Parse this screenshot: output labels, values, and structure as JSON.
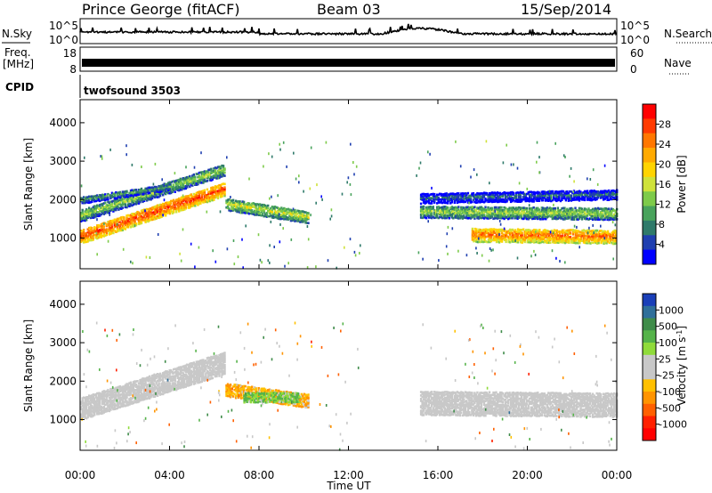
{
  "header": {
    "station": "Prince George (fitACF)",
    "beam": "Beam 03",
    "date": "15/Sep/2014"
  },
  "strips": {
    "nsky_label": "N.Sky",
    "nsky_ticks": [
      "10^5",
      "10^0"
    ],
    "nsearch_label": "N.Search",
    "nsearch_ticks": [
      "10^5",
      "10^0"
    ],
    "freq_label": "Freq.",
    "freq_unit": "[MHz]",
    "freq_ticks": [
      "18",
      "8"
    ],
    "nave_label": "Nave",
    "nave_ticks": [
      "60",
      "0"
    ],
    "cpid_label": "CPID",
    "cpid_value": "twofsound 3503"
  },
  "power_panel": {
    "ylabel": "Slant Range [km]",
    "yticks": [
      "4000",
      "3000",
      "2000",
      "1000"
    ],
    "colorbar_label": "Power [dB]",
    "colorbar_ticks": [
      "28",
      "24",
      "20",
      "16",
      "12",
      "8",
      "4"
    ],
    "colors": [
      "#0000ff",
      "#1f3fb0",
      "#2f7a6a",
      "#49a35c",
      "#7ecb4a",
      "#cfe23a",
      "#ffd400",
      "#ffaa00",
      "#ff7700",
      "#ff3a00",
      "#ff0000"
    ]
  },
  "velocity_panel": {
    "ylabel": "Slant Range [km]",
    "yticks": [
      "4000",
      "3000",
      "2000",
      "1000"
    ],
    "colorbar_label": "Velocity [m s",
    "colorbar_label_sup": "-1",
    "colorbar_label_end": "]",
    "colorbar_ticks": [
      "1000",
      "500",
      "100",
      "25",
      "-25",
      "-100",
      "-500",
      "-1000"
    ],
    "colors": [
      "#1a3fb8",
      "#2f6f9a",
      "#3f8c4a",
      "#55b34a",
      "#8fdb3a",
      "#c8c8c8",
      "#c8c8c8",
      "#ffc000",
      "#ff9400",
      "#ff6000",
      "#ff2000",
      "#ff0000"
    ]
  },
  "x_axis": {
    "ticks": [
      "00:00",
      "04:00",
      "08:00",
      "12:00",
      "16:00",
      "20:00",
      "00:00"
    ],
    "label": "Time UT"
  },
  "chart_data": {
    "type": "heatmap",
    "title": "Prince George (fitACF)",
    "x_unit": "hours UT",
    "xlim": [
      0,
      24
    ],
    "ylim": [
      200,
      4600
    ],
    "ylabel": "Slant Range [km]",
    "xlabel": "Time UT",
    "power_clim": [
      0,
      30
    ],
    "velocity_clim": [
      -1000,
      1000
    ],
    "power_bands": [
      {
        "t0": 0,
        "t1": 6.5,
        "r_start": 1050,
        "r_end": 2300,
        "width": 380,
        "power": 26
      },
      {
        "t0": 0,
        "t1": 6.5,
        "r_start": 1600,
        "r_end": 2800,
        "width": 300,
        "power": 14
      },
      {
        "t0": 0,
        "t1": 4,
        "r_start": 2000,
        "r_end": 2350,
        "width": 200,
        "power": 10
      },
      {
        "t0": 6.5,
        "t1": 10.2,
        "r_start": 1900,
        "r_end": 1550,
        "width": 300,
        "power": 16
      },
      {
        "t0": 17.5,
        "t1": 24,
        "r_start": 1100,
        "r_end": 1050,
        "width": 380,
        "power": 24
      },
      {
        "t0": 15.2,
        "t1": 24,
        "r_start": 1700,
        "r_end": 1650,
        "width": 330,
        "power": 14
      },
      {
        "t0": 15.2,
        "t1": 24,
        "r_start": 2050,
        "r_end": 2150,
        "width": 250,
        "power": 7
      }
    ],
    "velocity_bands": [
      {
        "t0": 0,
        "t1": 6.5,
        "r_start": 1300,
        "r_end": 2500,
        "width": 600,
        "velocity": 0
      },
      {
        "t0": 15.2,
        "t1": 24,
        "r_start": 1450,
        "r_end": 1400,
        "width": 650,
        "velocity": 0
      },
      {
        "t0": 6.5,
        "t1": 10.2,
        "r_start": 1800,
        "r_end": 1500,
        "width": 350,
        "velocity": -300
      },
      {
        "t0": 7.3,
        "t1": 9.8,
        "r_start": 1600,
        "r_end": 1600,
        "width": 260,
        "velocity": 300
      }
    ],
    "nave": 29,
    "freq_mhz": 10.5
  }
}
